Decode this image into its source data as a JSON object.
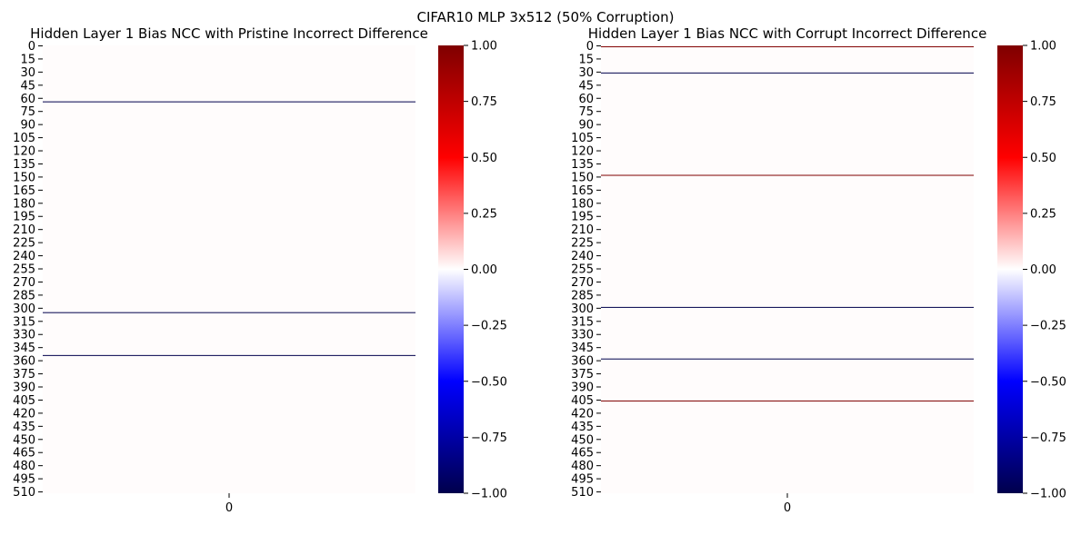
{
  "figure": {
    "suptitle": "CIFAR10 MLP 3x512 (50% Corruption)"
  },
  "chart_data": [
    {
      "type": "heatmap",
      "title": "Hidden Layer 1 Bias NCC with Pristine Incorrect Difference",
      "rows": 512,
      "columns": [
        "0"
      ],
      "y_ticks": [
        0,
        15,
        30,
        45,
        60,
        75,
        90,
        105,
        120,
        135,
        150,
        165,
        180,
        195,
        210,
        225,
        240,
        255,
        270,
        285,
        300,
        315,
        330,
        345,
        360,
        375,
        390,
        405,
        420,
        435,
        450,
        465,
        480,
        495,
        510
      ],
      "background_value": 0.0,
      "nonzero_cells": [
        {
          "row": 64,
          "value": -1.0
        },
        {
          "row": 305,
          "value": -1.0
        },
        {
          "row": 354,
          "value": -1.0
        }
      ],
      "colorbar": {
        "colormap": "seismic",
        "min": -1.0,
        "max": 1.0,
        "ticks": [
          "1.00",
          "0.75",
          "0.50",
          "0.25",
          "0.00",
          "−0.25",
          "−0.50",
          "−0.75",
          "−1.00"
        ]
      }
    },
    {
      "type": "heatmap",
      "title": "Hidden Layer 1 Bias NCC with Corrupt Incorrect Difference",
      "rows": 512,
      "columns": [
        "0"
      ],
      "y_ticks": [
        0,
        15,
        30,
        45,
        60,
        75,
        90,
        105,
        120,
        135,
        150,
        165,
        180,
        195,
        210,
        225,
        240,
        255,
        270,
        285,
        300,
        315,
        330,
        345,
        360,
        375,
        390,
        405,
        420,
        435,
        450,
        465,
        480,
        495,
        510
      ],
      "background_value": 0.0,
      "nonzero_cells": [
        {
          "row": 1,
          "value": 1.0
        },
        {
          "row": 31,
          "value": -1.0
        },
        {
          "row": 148,
          "value": 1.0
        },
        {
          "row": 299,
          "value": -1.0
        },
        {
          "row": 358,
          "value": -1.0
        },
        {
          "row": 406,
          "value": 1.0
        }
      ],
      "colorbar": {
        "colormap": "seismic",
        "min": -1.0,
        "max": 1.0,
        "ticks": [
          "1.00",
          "0.75",
          "0.50",
          "0.25",
          "0.00",
          "−0.25",
          "−0.50",
          "−0.75",
          "−1.00"
        ]
      }
    }
  ]
}
